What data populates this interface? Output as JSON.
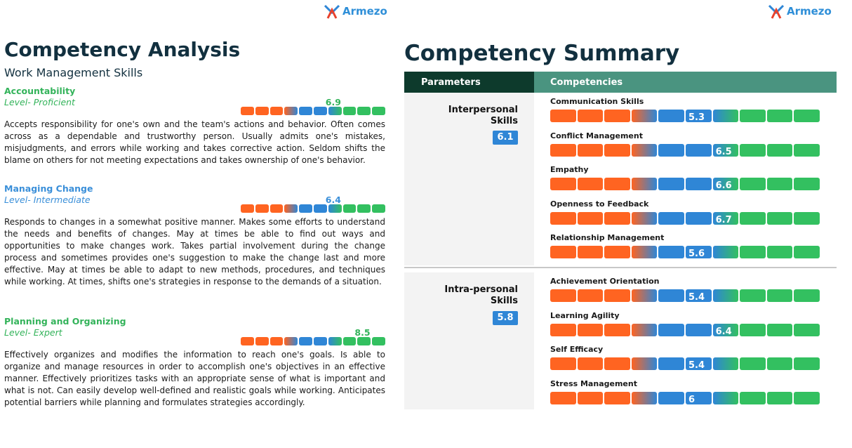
{
  "brand": {
    "name": "Armezo"
  },
  "colors": {
    "orange": "#ff6421",
    "blue": "#2f86d6",
    "green": "#33c060",
    "dark_green": "#0d3a2c",
    "teal": "#4a9480"
  },
  "analysis": {
    "title": "Competency Analysis",
    "subtitle": "Work Management Skills",
    "competencies": [
      {
        "name": "Accountability",
        "level": "Level- Proficient",
        "score": 6.9,
        "score_label": "6.9",
        "color": "green",
        "description": "Accepts responsibility for one's own and the team's actions and behavior. Often comes across as a dependable and trustworthy person. Usually admits one's mistakes, misjudgments, and errors while working and takes corrective action. Seldom shifts the blame on others for not meeting expectations and takes ownership of one's behavior."
      },
      {
        "name": "Managing Change",
        "level": "Level- Intermediate",
        "score": 6.4,
        "score_label": "6.4",
        "color": "blue",
        "description": "Responds to changes in a somewhat positive manner. Makes some efforts to understand the needs and benefits of changes. May at times be able to find out ways and opportunities to make changes work. Takes partial involvement during the change process and sometimes provides one's suggestion to make the change last and more effective. May at times be able to adapt to new methods, procedures, and techniques while working. At times, shifts one's strategies in response to the demands of a situation."
      },
      {
        "name": "Planning and Organizing",
        "level": "Level- Expert",
        "score": 8.5,
        "score_label": "8.5",
        "color": "green",
        "description": "Effectively organizes and modifies the information to reach one's goals. Is able to organize and manage resources in order to accomplish one's objectives in an effective manner. Effectively prioritizes tasks with an appropriate sense of what is important and what is not. Can easily develop well-defined and realistic goals while working. Anticipates potential barriers while planning and formulates strategies accordingly."
      }
    ]
  },
  "summary": {
    "title": "Competency Summary",
    "header_parameters": "Parameters",
    "header_competencies": "Competencies",
    "groups": [
      {
        "name_line1": "Interpersonal",
        "name_line2": "Skills",
        "score": "6.1",
        "items": [
          {
            "name": "Communication Skills",
            "score": 5.3,
            "label": "5.3"
          },
          {
            "name": "Conflict Management",
            "score": 6.5,
            "label": "6.5"
          },
          {
            "name": "Empathy",
            "score": 6.6,
            "label": "6.6"
          },
          {
            "name": "Openness to Feedback",
            "score": 6.7,
            "label": "6.7"
          },
          {
            "name": "Relationship Management",
            "score": 5.6,
            "label": "5.6"
          }
        ]
      },
      {
        "name_line1": "Intra-personal",
        "name_line2": "Skills",
        "score": "5.8",
        "items": [
          {
            "name": "Achievement Orientation",
            "score": 5.4,
            "label": "5.4"
          },
          {
            "name": "Learning Agility",
            "score": 6.4,
            "label": "6.4"
          },
          {
            "name": "Self Efficacy",
            "score": 5.4,
            "label": "5.4"
          },
          {
            "name": "Stress Management",
            "score": 6,
            "label": "6"
          }
        ]
      }
    ]
  }
}
